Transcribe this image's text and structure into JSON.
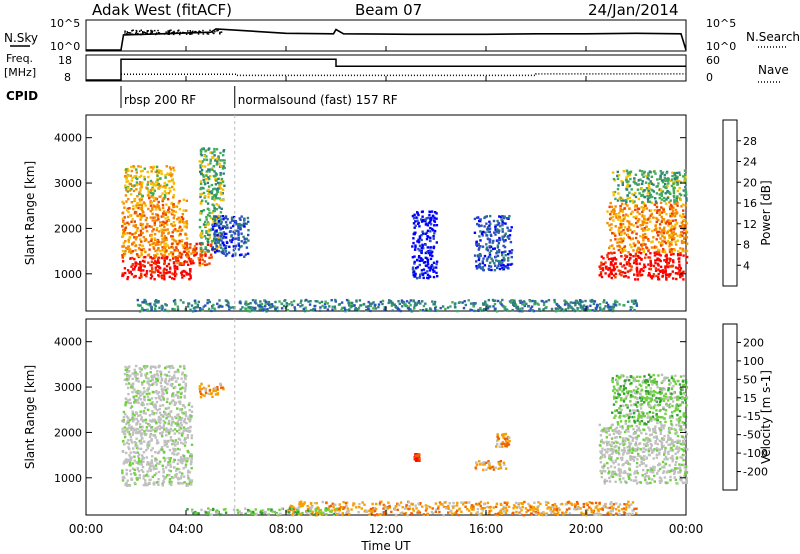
{
  "header": {
    "station": "Adak West (fitACF)",
    "beam": "Beam 07",
    "date": "24/Jan/2014"
  },
  "strip_labels": {
    "nsky": "N.Sky",
    "nsky_ticks": [
      "10^5",
      "10^0"
    ],
    "nsearch": "N.Search",
    "nsearch_ticks": [
      "10^5",
      "10^0"
    ],
    "freq_line1": "Freq.",
    "freq_line2": "[MHz]",
    "freq_ticks": [
      "18",
      "8"
    ],
    "nave": "Nave",
    "nave_ticks": [
      "60",
      "0"
    ],
    "cpid": "CPID",
    "cpid_segments": [
      {
        "label": "rbsp 200 RF",
        "start_hour": 1.4,
        "end_hour": 5.95
      },
      {
        "label": "normalsound (fast) 157 RF",
        "start_hour": 5.95,
        "end_hour": 24
      }
    ]
  },
  "colors": {
    "power_scale": [
      "#0000ff",
      "#2a4fbf",
      "#2f7f7f",
      "#3faa5a",
      "#f5c000",
      "#f58a00",
      "#f04000",
      "#ff0000"
    ],
    "velocity_scale": [
      "#2030c0",
      "#3050c0",
      "#30a030",
      "#70d040",
      "#c0c0c0",
      "#c0c0c0",
      "#f5a000",
      "#f06000",
      "#ff2000",
      "#ff0000"
    ]
  },
  "chart_data": [
    {
      "type": "line",
      "name": "N.Sky / N.Search",
      "x": [
        0,
        1.4,
        1.5,
        3,
        5,
        5.2,
        8,
        9.9,
        10,
        10.3,
        13,
        16,
        18,
        20,
        22,
        23.8,
        24
      ],
      "y": [
        0,
        0,
        2.8,
        3.0,
        3.3,
        3.9,
        3.1,
        3.0,
        3.8,
        3.0,
        2.9,
        2.9,
        3.0,
        3.0,
        3.1,
        3.0,
        0
      ],
      "xlim": [
        0,
        24
      ]
    },
    {
      "type": "line",
      "name": "Freq / Nave",
      "freq_x": [
        0,
        1.4,
        1.4,
        10,
        10,
        24
      ],
      "freq_y": [
        8,
        8,
        17,
        17,
        14,
        14
      ],
      "nave_x": [
        1.4,
        6,
        6,
        18,
        18,
        24
      ],
      "nave_y": [
        15,
        15,
        12,
        12,
        16,
        16
      ],
      "freq_ylim": [
        8,
        18
      ],
      "nave_ylim": [
        0,
        60
      ]
    },
    {
      "type": "heatmap",
      "name": "Power",
      "ylabel": "Slant Range [km]",
      "colorbar_label": "Power [dB]",
      "colorbar_ticks": [
        "28",
        "24",
        "20",
        "16",
        "12",
        "8",
        "4"
      ],
      "yticks": [
        "4000",
        "3000",
        "2000",
        "1000"
      ],
      "ylim": [
        180,
        4500
      ],
      "xlim": [
        0,
        24
      ],
      "regions": [
        {
          "t0": 1.4,
          "t1": 4.2,
          "r0": 900,
          "r1": 1400,
          "level": 7
        },
        {
          "t0": 1.4,
          "t1": 4.0,
          "r0": 1400,
          "r1": 2700,
          "level": 5
        },
        {
          "t0": 1.5,
          "t1": 3.5,
          "r0": 2700,
          "r1": 3400,
          "level": 4
        },
        {
          "t0": 3.5,
          "t1": 5.0,
          "r0": 1200,
          "r1": 1700,
          "level": 6
        },
        {
          "t0": 4.5,
          "t1": 5.5,
          "r0": 1500,
          "r1": 3800,
          "level": 3
        },
        {
          "t0": 5.0,
          "t1": 6.5,
          "r0": 1400,
          "r1": 2300,
          "level": 1
        },
        {
          "t0": 13.0,
          "t1": 14.0,
          "r0": 900,
          "r1": 2400,
          "level": 0
        },
        {
          "t0": 15.5,
          "t1": 17.0,
          "r0": 1100,
          "r1": 2300,
          "level": 1
        },
        {
          "t0": 20.5,
          "t1": 24.0,
          "r0": 900,
          "r1": 1500,
          "level": 7
        },
        {
          "t0": 20.8,
          "t1": 24.0,
          "r0": 1500,
          "r1": 2600,
          "level": 5
        },
        {
          "t0": 21.0,
          "t1": 24.0,
          "r0": 2600,
          "r1": 3300,
          "level": 3
        },
        {
          "t0": 2.0,
          "t1": 22.0,
          "r0": 200,
          "r1": 450,
          "level": 2
        }
      ]
    },
    {
      "type": "heatmap",
      "name": "Velocity",
      "ylabel": "Slant Range [km]",
      "xlabel": "Time UT",
      "colorbar_label": "Velocity [m s-1]",
      "colorbar_ticks": [
        "200",
        "100",
        "50",
        "15",
        "-15",
        "-50",
        "-100",
        "-200"
      ],
      "yticks": [
        "4000",
        "3000",
        "2000",
        "1000"
      ],
      "xticks": [
        "00:00",
        "04:00",
        "08:00",
        "12:00",
        "16:00",
        "20:00",
        "00:00"
      ],
      "ylim": [
        180,
        4500
      ],
      "xlim": [
        0,
        24
      ],
      "regions": [
        {
          "t0": 1.4,
          "t1": 4.2,
          "r0": 850,
          "r1": 2700,
          "level": 4
        },
        {
          "t0": 1.5,
          "t1": 4.0,
          "r0": 2700,
          "r1": 3500,
          "level": 4
        },
        {
          "t0": 4.5,
          "t1": 5.5,
          "r0": 2800,
          "r1": 3100,
          "level": 6
        },
        {
          "t0": 13.1,
          "t1": 13.3,
          "r0": 1400,
          "r1": 1550,
          "level": 8
        },
        {
          "t0": 15.5,
          "t1": 16.8,
          "r0": 1200,
          "r1": 1400,
          "level": 6
        },
        {
          "t0": 16.3,
          "t1": 16.9,
          "r0": 1700,
          "r1": 2000,
          "level": 6
        },
        {
          "t0": 20.5,
          "t1": 24.0,
          "r0": 900,
          "r1": 2200,
          "level": 4
        },
        {
          "t0": 21.0,
          "t1": 24.0,
          "r0": 2200,
          "r1": 3300,
          "level": 3
        },
        {
          "t0": 8.0,
          "t1": 22.0,
          "r0": 200,
          "r1": 500,
          "level": 6
        },
        {
          "t0": 4.0,
          "t1": 10.0,
          "r0": 200,
          "r1": 350,
          "level": 3
        }
      ]
    }
  ]
}
